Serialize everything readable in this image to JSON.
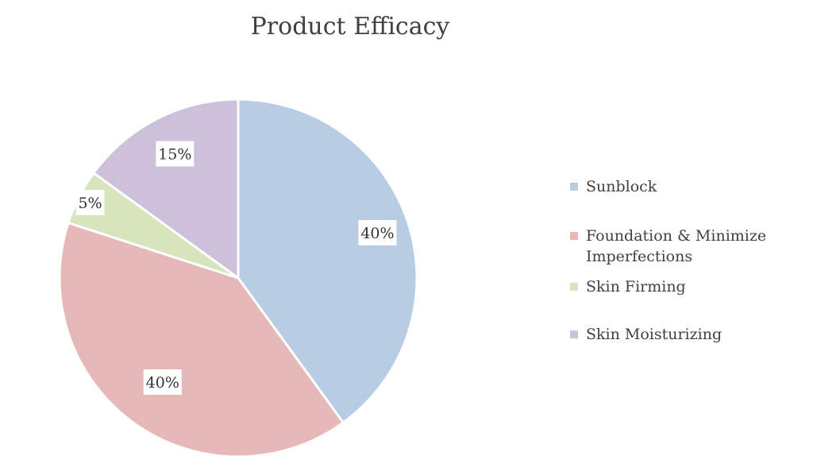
{
  "chart_data": {
    "type": "pie",
    "title": "Product Efficacy",
    "start_angle_deg": 0,
    "direction": "clockwise",
    "legend_position": "right",
    "series": [
      {
        "name": "Sunblock",
        "value": 40,
        "label": "40%",
        "color": "#b8cce4"
      },
      {
        "name": "Foundation & Minimize Imperfections",
        "value": 40,
        "label": "40%",
        "color": "#e6b9b8"
      },
      {
        "name": "Skin Firming",
        "value": 5,
        "label": "5%",
        "color": "#d7e4bc"
      },
      {
        "name": "Skin Moisturizing",
        "value": 15,
        "label": "15%",
        "color": "#ccc0da"
      }
    ]
  }
}
